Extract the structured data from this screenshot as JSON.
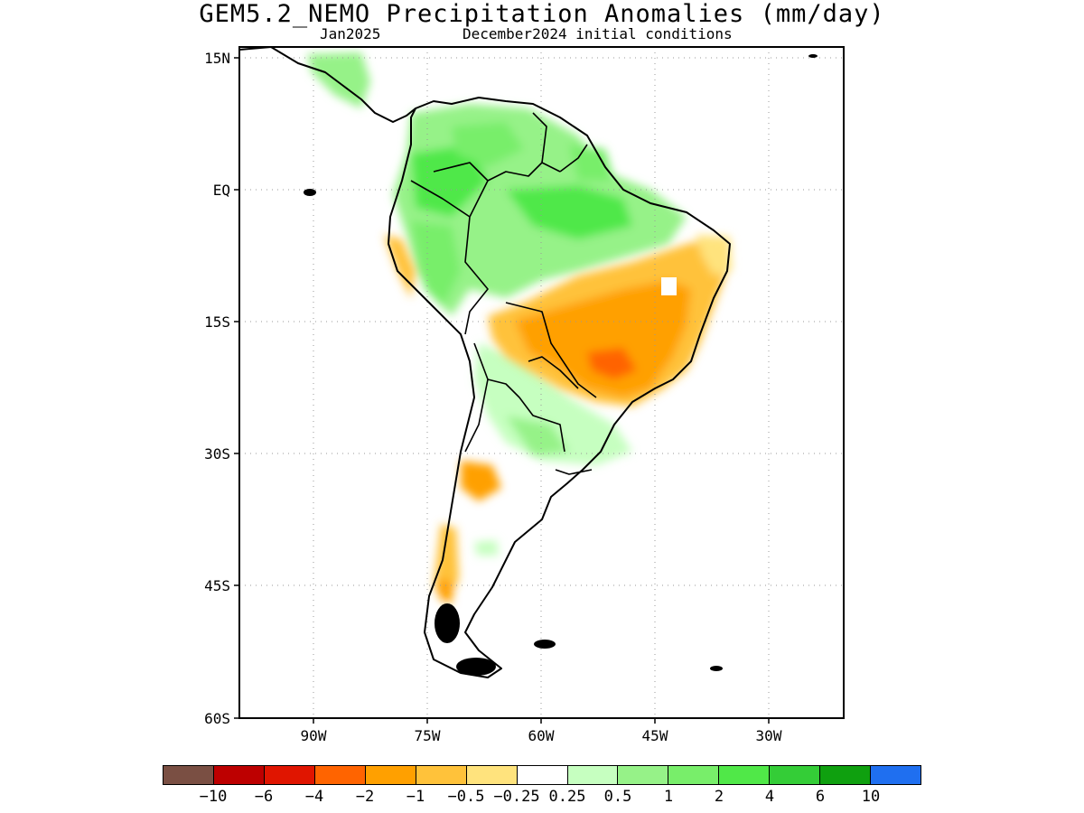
{
  "header": {
    "title": "GEM5.2_NEMO Precipitation Anomalies (mm/day)",
    "valid_month": "Jan2025",
    "init": "December2024 initial conditions"
  },
  "map": {
    "x_ticks": [
      "90W",
      "75W",
      "60W",
      "45W",
      "30W"
    ],
    "y_ticks": [
      "15N",
      "EQ",
      "15S",
      "30S",
      "45S",
      "60S"
    ],
    "grid": "dotted"
  },
  "colorbar": {
    "colors": [
      "#7a4f43",
      "#bd0000",
      "#e01500",
      "#ff6400",
      "#ffa000",
      "#ffc23a",
      "#ffe37d",
      "#ffffff",
      "#c6ffc0",
      "#96f288",
      "#78ee6a",
      "#50e848",
      "#34cd37",
      "#0fa00f",
      "#1f6ff0"
    ],
    "labels": [
      "−10",
      "−6",
      "−4",
      "−2",
      "−1",
      "−0.5",
      "−0.25",
      "0.25",
      "0.5",
      "1",
      "2",
      "4",
      "6",
      "10"
    ]
  }
}
